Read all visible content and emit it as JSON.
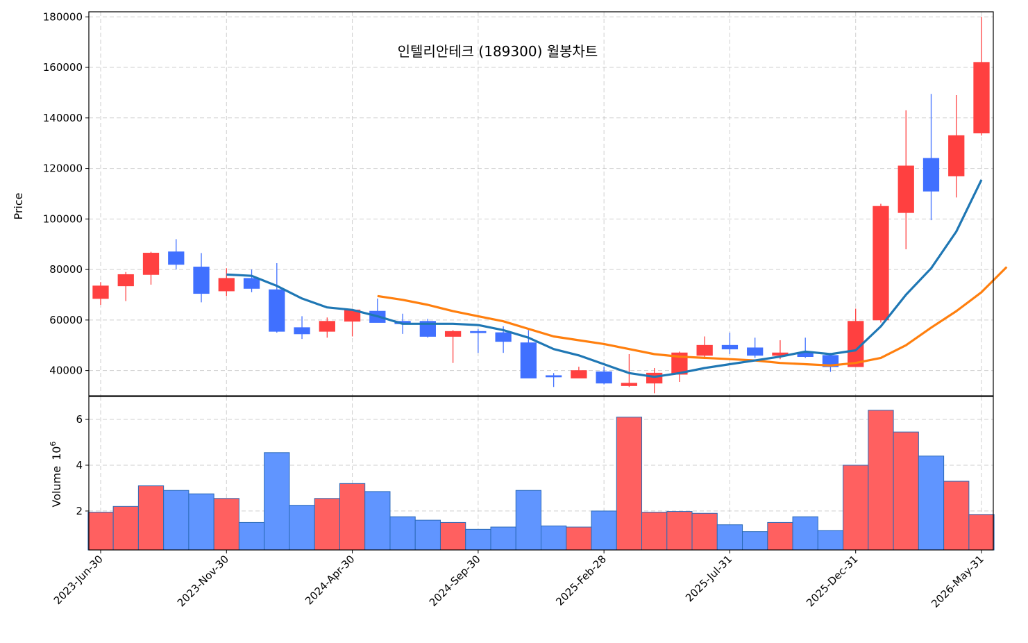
{
  "chart_data": {
    "type": "candlestick",
    "title": "인텔리안테크 (189300) 월봉차트",
    "ylabel": "Price",
    "volume_label": "Volume",
    "volume_exponent_base": "10",
    "volume_exponent_power": "6",
    "ylim": [
      30000,
      182000
    ],
    "volume_ylim": [
      0.3,
      7.0
    ],
    "y_ticks": [
      40000,
      60000,
      80000,
      100000,
      120000,
      140000,
      160000,
      180000
    ],
    "y_tick_labels": [
      "40000",
      "60000",
      "80000",
      "100000",
      "120000",
      "140000",
      "160000",
      "180000"
    ],
    "volume_ticks": [
      2,
      4,
      6
    ],
    "volume_tick_labels": [
      "2",
      "4",
      "6"
    ],
    "x_tick_indices": [
      0,
      5,
      10,
      15,
      20,
      25,
      30,
      35
    ],
    "x_tick_labels": [
      "2023-Jun-30",
      "2023-Nov-30",
      "2024-Apr-30",
      "2024-Sep-30",
      "2025-Feb-28",
      "2025-Jul-31",
      "2025-Dec-31",
      "2026-May-31"
    ],
    "grid": true,
    "colors": {
      "up": "#ff4040",
      "down": "#4070ff",
      "vol_up": "#ff6060",
      "vol_down": "#6095ff",
      "vol_edge": "#2a6ab8",
      "ma_short": "#1f77b4",
      "ma_long": "#ff7f0e"
    },
    "candles": [
      {
        "o": 68500,
        "h": 75000,
        "l": 66000,
        "c": 73500,
        "v": 1.95
      },
      {
        "o": 73500,
        "h": 79000,
        "l": 67500,
        "c": 78000,
        "v": 2.2
      },
      {
        "o": 78000,
        "h": 87000,
        "l": 74000,
        "c": 86500,
        "v": 3.1
      },
      {
        "o": 87000,
        "h": 92000,
        "l": 80000,
        "c": 82000,
        "v": 2.9
      },
      {
        "o": 81000,
        "h": 86500,
        "l": 67000,
        "c": 70500,
        "v": 2.75
      },
      {
        "o": 71500,
        "h": 80500,
        "l": 69500,
        "c": 76500,
        "v": 2.55
      },
      {
        "o": 76500,
        "h": 80000,
        "l": 71000,
        "c": 72500,
        "v": 1.5
      },
      {
        "o": 72000,
        "h": 82500,
        "l": 55000,
        "c": 55500,
        "v": 4.55
      },
      {
        "o": 57000,
        "h": 61500,
        "l": 52500,
        "c": 54500,
        "v": 2.25
      },
      {
        "o": 55500,
        "h": 61000,
        "l": 53000,
        "c": 59500,
        "v": 2.55
      },
      {
        "o": 59500,
        "h": 64500,
        "l": 53500,
        "c": 64000,
        "v": 3.2
      },
      {
        "o": 63500,
        "h": 68500,
        "l": 59000,
        "c": 59000,
        "v": 2.85
      },
      {
        "o": 59500,
        "h": 62500,
        "l": 54500,
        "c": 58500,
        "v": 1.75
      },
      {
        "o": 59500,
        "h": 60500,
        "l": 53000,
        "c": 53500,
        "v": 1.6
      },
      {
        "o": 53500,
        "h": 56000,
        "l": 43000,
        "c": 55500,
        "v": 1.5
      },
      {
        "o": 55500,
        "h": 56500,
        "l": 47000,
        "c": 55000,
        "v": 1.2
      },
      {
        "o": 55000,
        "h": 57500,
        "l": 47000,
        "c": 51500,
        "v": 1.3
      },
      {
        "o": 51000,
        "h": 56000,
        "l": 37000,
        "c": 37000,
        "v": 2.9
      },
      {
        "o": 38000,
        "h": 39000,
        "l": 33500,
        "c": 37500,
        "v": 1.35
      },
      {
        "o": 37000,
        "h": 41500,
        "l": 37000,
        "c": 40000,
        "v": 1.3
      },
      {
        "o": 39500,
        "h": 41500,
        "l": 34500,
        "c": 35000,
        "v": 2.0
      },
      {
        "o": 34000,
        "h": 46500,
        "l": 33500,
        "c": 35000,
        "v": 6.1
      },
      {
        "o": 35000,
        "h": 41000,
        "l": 31000,
        "c": 39000,
        "v": 1.95
      },
      {
        "o": 38500,
        "h": 47500,
        "l": 35500,
        "c": 47000,
        "v": 1.98
      },
      {
        "o": 46000,
        "h": 53500,
        "l": 45000,
        "c": 50000,
        "v": 1.9
      },
      {
        "o": 50000,
        "h": 55000,
        "l": 46500,
        "c": 48500,
        "v": 1.4
      },
      {
        "o": 49000,
        "h": 53000,
        "l": 45000,
        "c": 46000,
        "v": 1.1
      },
      {
        "o": 46000,
        "h": 52000,
        "l": 44500,
        "c": 47000,
        "v": 1.5
      },
      {
        "o": 47000,
        "h": 53000,
        "l": 45000,
        "c": 45500,
        "v": 1.75
      },
      {
        "o": 46000,
        "h": 47000,
        "l": 39500,
        "c": 41500,
        "v": 1.15
      },
      {
        "o": 41500,
        "h": 64500,
        "l": 41500,
        "c": 59500,
        "v": 4.0
      },
      {
        "o": 60000,
        "h": 106000,
        "l": 59000,
        "c": 105000,
        "v": 6.4
      },
      {
        "o": 102500,
        "h": 143000,
        "l": 88000,
        "c": 121000,
        "v": 5.45
      },
      {
        "o": 124000,
        "h": 149500,
        "l": 99500,
        "c": 111000,
        "v": 4.4
      },
      {
        "o": 117000,
        "h": 149000,
        "l": 108500,
        "c": 133000,
        "v": 3.3
      },
      {
        "o": 134000,
        "h": 180000,
        "l": 133000,
        "c": 162000,
        "v": 1.85
      }
    ],
    "ma_short_start": 5,
    "ma_short": [
      78000,
      77500,
      73500,
      68500,
      65000,
      64000,
      61500,
      58500,
      58500,
      58500,
      58000,
      56000,
      53000,
      48500,
      46000,
      42500,
      39000,
      37500,
      39000,
      41000,
      42500,
      44000,
      45500,
      47500,
      46500,
      48000,
      57500,
      70000,
      80500,
      95000,
      115500
    ],
    "ma_long_start": 11,
    "ma_long": [
      69500,
      68000,
      66000,
      63500,
      61500,
      59500,
      56500,
      53500,
      52000,
      50500,
      48500,
      46500,
      45500,
      45000,
      44500,
      44000,
      43000,
      42500,
      42000,
      43000,
      45000,
      50000,
      57000,
      63500,
      71000,
      81000
    ]
  }
}
